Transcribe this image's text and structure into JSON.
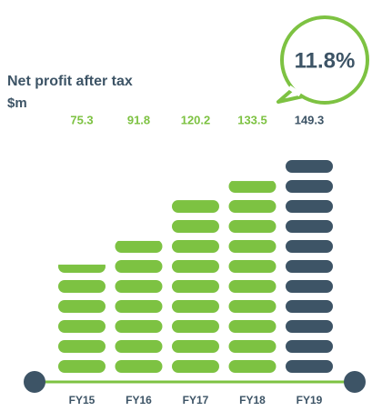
{
  "chart_data": {
    "type": "bar",
    "title": "Net profit after tax",
    "subtitle": "$m",
    "annotation": "11.8%",
    "categories": [
      "FY15",
      "FY16",
      "FY17",
      "FY18",
      "FY19"
    ],
    "values": [
      75.3,
      91.8,
      120.2,
      133.5,
      149.3
    ],
    "colors": [
      "#7dc242",
      "#7dc242",
      "#7dc242",
      "#7dc242",
      "#3d5466"
    ]
  }
}
